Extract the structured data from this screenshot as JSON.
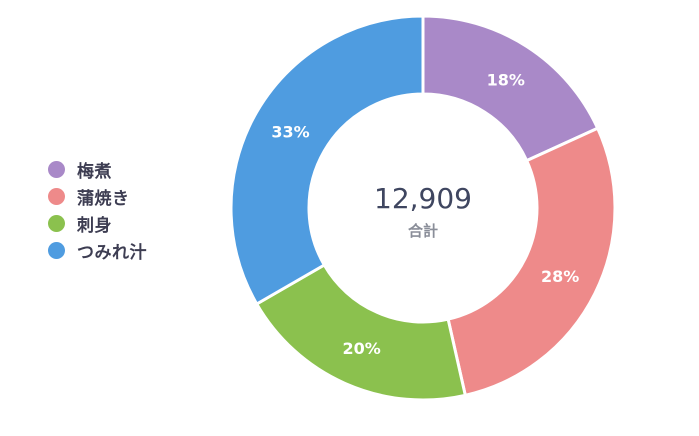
{
  "chart_data": {
    "type": "pie",
    "categories": [
      "梅煮",
      "蒲焼き",
      "刺身",
      "つみれ汁"
    ],
    "values": [
      18,
      28,
      20,
      33
    ],
    "labels": [
      "18%",
      "28%",
      "20%",
      "33%"
    ],
    "colors": [
      "#a989c8",
      "#ee8a8a",
      "#8bc14e",
      "#4f9ce0"
    ],
    "total": "12,909",
    "total_caption": "合計",
    "legend_placement": "left",
    "donut": true
  }
}
